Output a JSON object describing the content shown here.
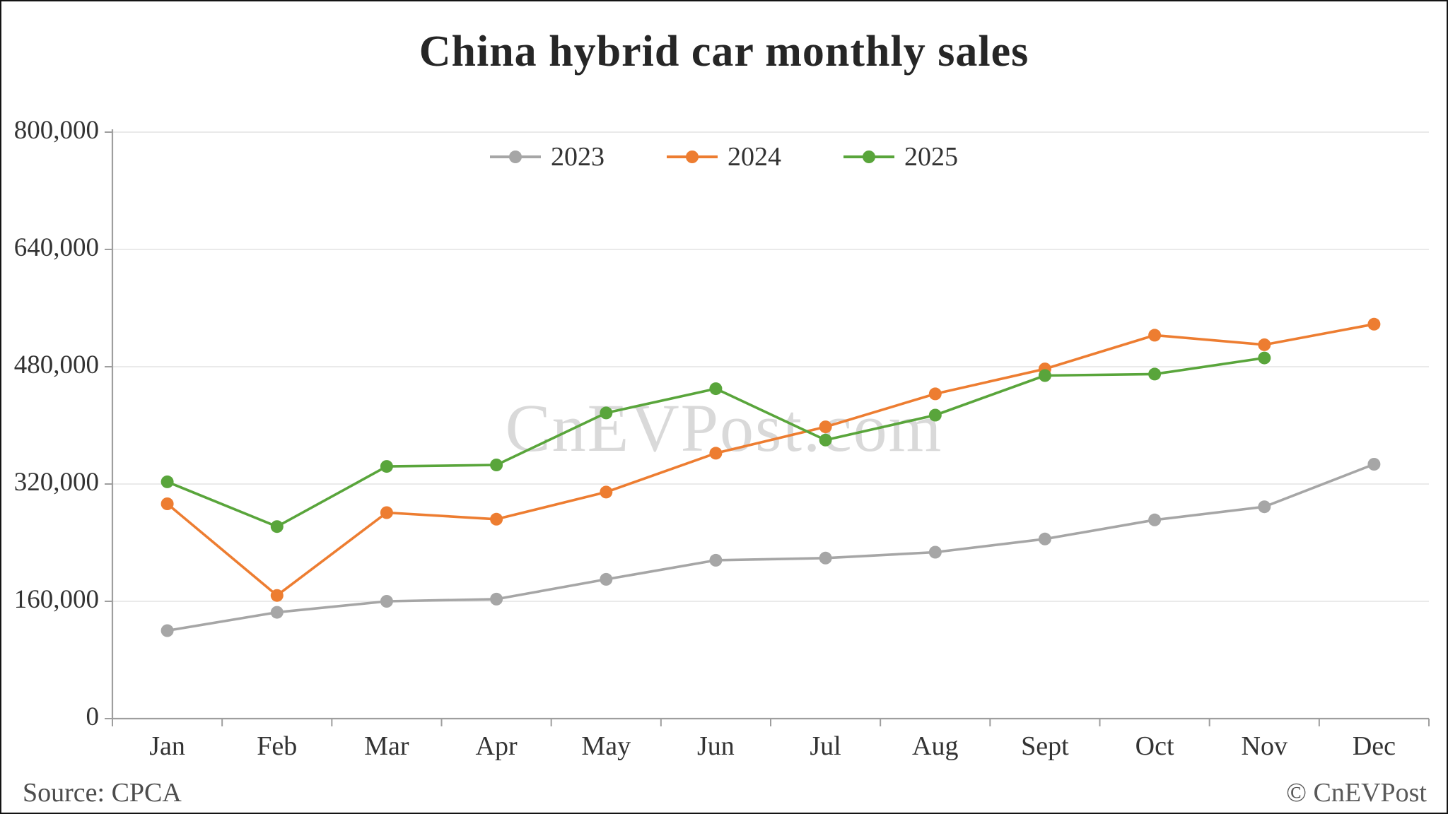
{
  "title": "China hybrid car monthly sales",
  "watermark": "CnEVPost.com",
  "footer": {
    "source": "Source: CPCA",
    "copyright": "© CnEVPost"
  },
  "colors": {
    "series_2023": "#a6a6a6",
    "series_2024": "#ed7d31",
    "series_2025": "#59a53b",
    "gridline": "#e4e4e4",
    "axis": "#9e9e9e",
    "text": "#333333"
  },
  "chart_data": {
    "type": "line",
    "title": "China hybrid car monthly sales",
    "categories": [
      "Jan",
      "Feb",
      "Mar",
      "Apr",
      "May",
      "Jun",
      "Jul",
      "Aug",
      "Sept",
      "Oct",
      "Nov",
      "Dec"
    ],
    "series": [
      {
        "name": "2023",
        "color": "#a6a6a6",
        "values": [
          120000,
          145000,
          160000,
          163000,
          190000,
          216000,
          219000,
          227000,
          245000,
          271000,
          289000,
          347000
        ]
      },
      {
        "name": "2024",
        "color": "#ed7d31",
        "values": [
          293000,
          168000,
          281000,
          272000,
          309000,
          362000,
          398000,
          443000,
          477000,
          523000,
          510000,
          538000
        ]
      },
      {
        "name": "2025",
        "color": "#59a53b",
        "values": [
          323000,
          262000,
          344000,
          346000,
          417000,
          450000,
          380000,
          414000,
          468000,
          470000,
          492000
        ]
      }
    ],
    "ylim": [
      0,
      800000
    ],
    "ytick_interval": 160000,
    "ytick_labels": [
      "0",
      "160,000",
      "320,000",
      "480,000",
      "640,000",
      "800,000"
    ],
    "xlabel": "",
    "ylabel": "",
    "grid": true,
    "legend_position": "top-center"
  }
}
